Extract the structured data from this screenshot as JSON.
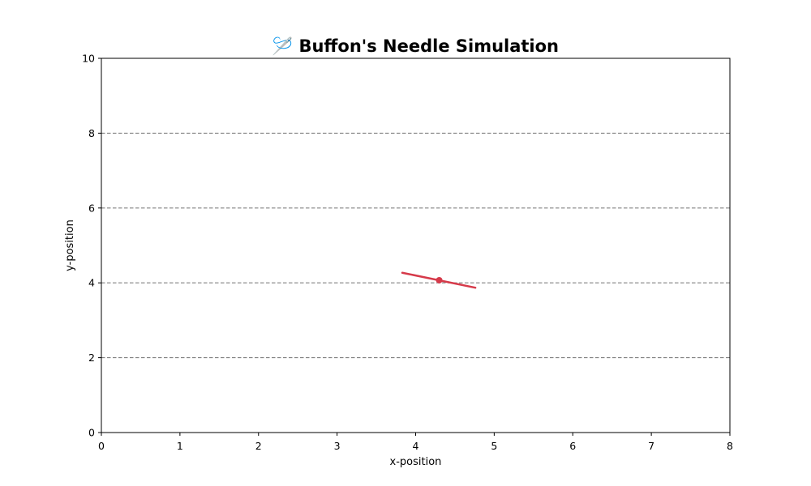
{
  "chart_data": {
    "type": "scatter",
    "title": "🪡 Buffon's Needle Simulation",
    "xlabel": "x-position",
    "ylabel": "y-position",
    "xlim": [
      0,
      8
    ],
    "ylim": [
      0,
      10
    ],
    "xticks": [
      "0",
      "1",
      "2",
      "3",
      "4",
      "5",
      "6",
      "7",
      "8"
    ],
    "yticks": [
      "0",
      "2",
      "4",
      "6",
      "8",
      "10"
    ],
    "grid": false,
    "legend": "none",
    "reference_lines": {
      "orientation": "horizontal",
      "style": "dashed",
      "color": "#808080",
      "y_values": [
        2,
        4,
        6,
        8
      ]
    },
    "needle": {
      "x1": 3.83,
      "y1": 4.27,
      "x2": 4.76,
      "y2": 3.87,
      "color": "#d63a4a"
    },
    "points": [
      {
        "x": 4.3,
        "y": 4.07,
        "color": "#d63a4a"
      }
    ]
  }
}
